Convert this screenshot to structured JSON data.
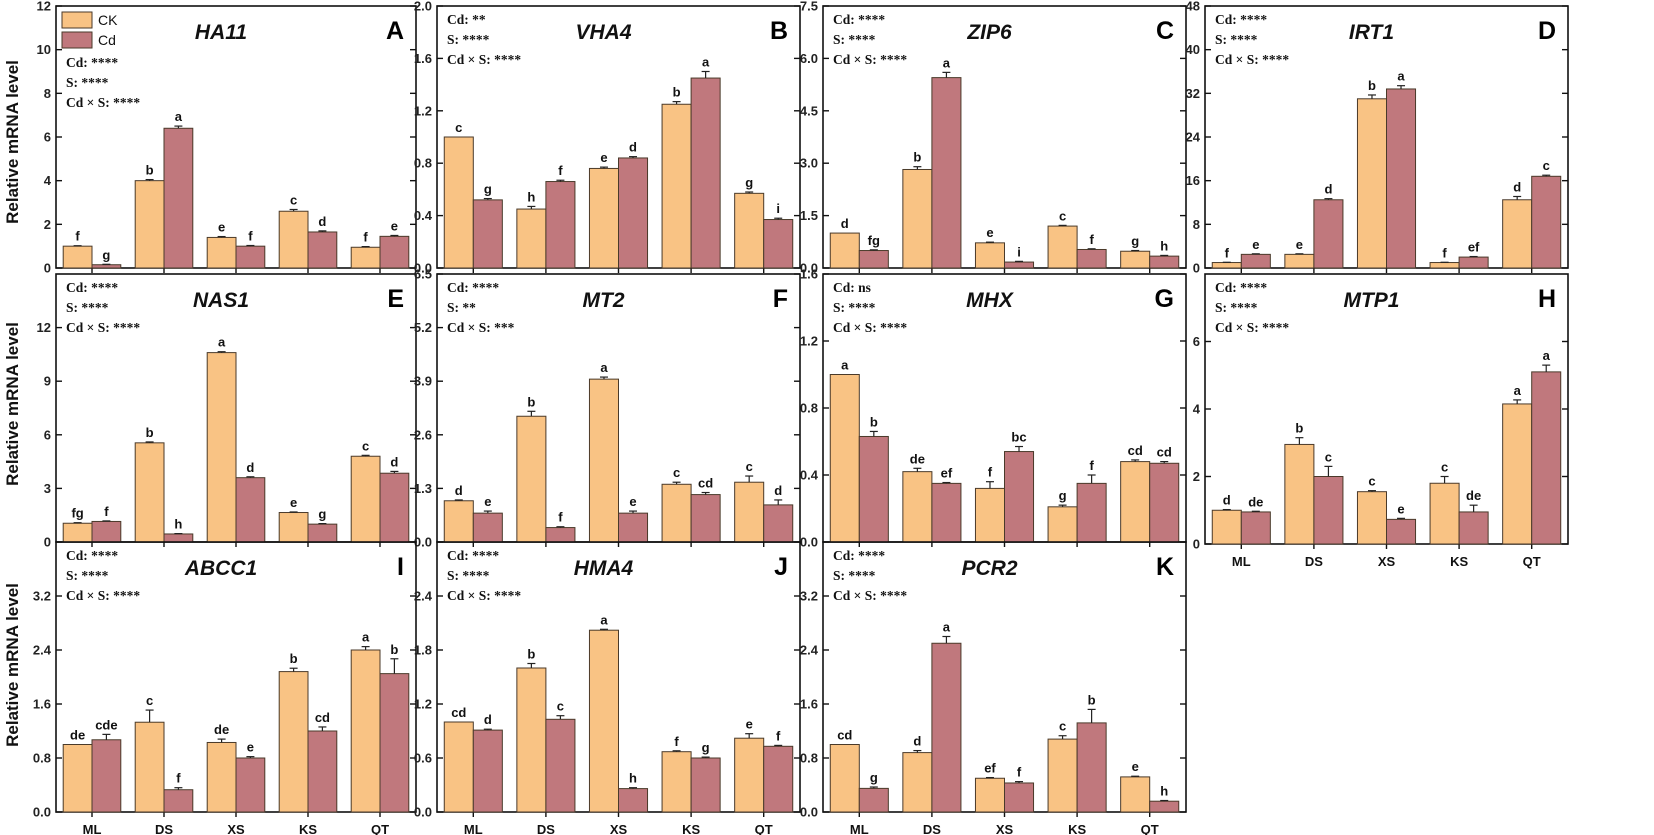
{
  "figure": {
    "y_axis_label": "Relative mRNA level",
    "legend": [
      {
        "label": "CK",
        "color": "#F9C384"
      },
      {
        "label": "Cd",
        "color": "#C0787D"
      }
    ],
    "bar_stroke": "#4a3a2a",
    "axis_color": "#111111"
  },
  "chart_data": [
    {
      "type": "bar",
      "letter": "A",
      "gene": "HA11",
      "categories": [
        "ML",
        "DS",
        "XS",
        "KS",
        "QT"
      ],
      "ylim": [
        0,
        12
      ],
      "yticks": [
        0,
        2,
        4,
        6,
        8,
        10,
        12
      ],
      "yticklabels": [
        "0",
        "2",
        "4",
        "6",
        "8",
        "10",
        "12"
      ],
      "stats": [
        "Cd: ****",
        "S: ****",
        "Cd × S: ****"
      ],
      "series": [
        {
          "name": "CK",
          "values": [
            1.0,
            4.0,
            1.4,
            2.6,
            0.95
          ],
          "errors": [
            0.02,
            0.05,
            0.04,
            0.08,
            0.03
          ],
          "sig": [
            "f",
            "b",
            "e",
            "c",
            "f"
          ]
        },
        {
          "name": "Cd",
          "values": [
            0.15,
            6.4,
            1.0,
            1.65,
            1.45
          ],
          "errors": [
            0.02,
            0.1,
            0.03,
            0.05,
            0.04
          ],
          "sig": [
            "g",
            "a",
            "f",
            "d",
            "e"
          ]
        }
      ]
    },
    {
      "type": "bar",
      "letter": "B",
      "gene": "VHA4",
      "categories": [
        "ML",
        "DS",
        "XS",
        "KS",
        "QT"
      ],
      "ylim": [
        0,
        2.0
      ],
      "yticks": [
        0,
        0.4,
        0.8,
        1.2,
        1.6,
        2.0
      ],
      "yticklabels": [
        "0.0",
        "0.4",
        "0.8",
        "1.2",
        "1.6",
        "2.0"
      ],
      "stats": [
        "Cd: **",
        "S: ****",
        "Cd × S: ****"
      ],
      "series": [
        {
          "name": "CK",
          "values": [
            1.0,
            0.45,
            0.76,
            1.25,
            0.57
          ],
          "errors": [
            0.0,
            0.02,
            0.01,
            0.02,
            0.01
          ],
          "sig": [
            "c",
            "h",
            "e",
            "b",
            "g"
          ]
        },
        {
          "name": "Cd",
          "values": [
            0.52,
            0.66,
            0.84,
            1.45,
            0.37
          ],
          "errors": [
            0.01,
            0.01,
            0.01,
            0.05,
            0.01
          ],
          "sig": [
            "g",
            "f",
            "d",
            "a",
            "i"
          ]
        }
      ]
    },
    {
      "type": "bar",
      "letter": "C",
      "gene": "ZIP6",
      "categories": [
        "ML",
        "DS",
        "XS",
        "KS",
        "QT"
      ],
      "ylim": [
        0,
        7.5
      ],
      "yticks": [
        0,
        1.5,
        3.0,
        4.5,
        6.0,
        7.5
      ],
      "yticklabels": [
        "0.0",
        "1.5",
        "3.0",
        "4.5",
        "6.0",
        "7.5"
      ],
      "stats": [
        "Cd: ****",
        "S: ****",
        "Cd × S: ****"
      ],
      "series": [
        {
          "name": "CK",
          "values": [
            1.0,
            2.82,
            0.72,
            1.2,
            0.48
          ],
          "errors": [
            0.0,
            0.08,
            0.02,
            0.02,
            0.02
          ],
          "sig": [
            "d",
            "b",
            "e",
            "c",
            "g"
          ]
        },
        {
          "name": "Cd",
          "values": [
            0.5,
            5.45,
            0.17,
            0.53,
            0.34
          ],
          "errors": [
            0.02,
            0.15,
            0.02,
            0.02,
            0.02
          ],
          "sig": [
            "fg",
            "a",
            "i",
            "f",
            "h"
          ]
        }
      ]
    },
    {
      "type": "bar",
      "letter": "D",
      "gene": "IRT1",
      "categories": [
        "ML",
        "DS",
        "XS",
        "KS",
        "QT"
      ],
      "ylim": [
        0,
        48
      ],
      "yticks": [
        0,
        8,
        16,
        24,
        32,
        40,
        48
      ],
      "yticklabels": [
        "0",
        "8",
        "16",
        "24",
        "32",
        "40",
        "48"
      ],
      "stats": [
        "Cd: ****",
        "S: ****",
        "Cd × S: ****"
      ],
      "series": [
        {
          "name": "CK",
          "values": [
            1.0,
            2.5,
            31.0,
            1.0,
            12.5
          ],
          "errors": [
            0.05,
            0.1,
            0.7,
            0.05,
            0.6
          ],
          "sig": [
            "f",
            "e",
            "b",
            "f",
            "d"
          ]
        },
        {
          "name": "Cd",
          "values": [
            2.5,
            12.5,
            32.8,
            2.0,
            16.8
          ],
          "errors": [
            0.1,
            0.2,
            0.6,
            0.1,
            0.2
          ],
          "sig": [
            "e",
            "d",
            "a",
            "ef",
            "c"
          ]
        }
      ]
    },
    {
      "type": "bar",
      "letter": "E",
      "gene": "NAS1",
      "categories": [
        "ML",
        "DS",
        "XS",
        "KS",
        "QT"
      ],
      "ylim": [
        0,
        15
      ],
      "yticks": [
        0,
        3,
        6,
        9,
        12
      ],
      "yticklabels": [
        "0",
        "3",
        "6",
        "9",
        "12"
      ],
      "stats": [
        "Cd: ****",
        "S: ****",
        "Cd × S: ****"
      ],
      "series": [
        {
          "name": "CK",
          "values": [
            1.05,
            5.55,
            10.6,
            1.65,
            4.8
          ],
          "errors": [
            0.03,
            0.05,
            0.05,
            0.03,
            0.05
          ],
          "sig": [
            "fg",
            "b",
            "a",
            "e",
            "c"
          ]
        },
        {
          "name": "Cd",
          "values": [
            1.15,
            0.45,
            3.6,
            1.0,
            3.85
          ],
          "errors": [
            0.03,
            0.02,
            0.05,
            0.03,
            0.1
          ],
          "sig": [
            "f",
            "h",
            "d",
            "g",
            "d"
          ]
        }
      ]
    },
    {
      "type": "bar",
      "letter": "F",
      "gene": "MT2",
      "categories": [
        "ML",
        "DS",
        "XS",
        "KS",
        "QT"
      ],
      "ylim": [
        0,
        6.5
      ],
      "yticks": [
        0,
        1.3,
        2.6,
        3.9,
        5.2,
        6.5
      ],
      "yticklabels": [
        "0.0",
        "1.3",
        "2.6",
        "3.9",
        "5.2",
        "6.5"
      ],
      "stats": [
        "Cd: ****",
        "S: **",
        "Cd × S: ***"
      ],
      "series": [
        {
          "name": "CK",
          "values": [
            1.0,
            3.05,
            3.95,
            1.4,
            1.45
          ],
          "errors": [
            0.02,
            0.12,
            0.05,
            0.05,
            0.15
          ],
          "sig": [
            "d",
            "b",
            "a",
            "c",
            "c"
          ]
        },
        {
          "name": "Cd",
          "values": [
            0.7,
            0.35,
            0.7,
            1.15,
            0.9
          ],
          "errors": [
            0.05,
            0.02,
            0.05,
            0.05,
            0.12
          ],
          "sig": [
            "e",
            "f",
            "e",
            "cd",
            "d"
          ]
        }
      ]
    },
    {
      "type": "bar",
      "letter": "G",
      "gene": "MHX",
      "categories": [
        "ML",
        "DS",
        "XS",
        "KS",
        "QT"
      ],
      "ylim": [
        0,
        1.6
      ],
      "yticks": [
        0,
        0.4,
        0.8,
        1.2,
        1.6
      ],
      "yticklabels": [
        "0.0",
        "0.4",
        "0.8",
        "1.2",
        "1.6"
      ],
      "stats": [
        "Cd: ns",
        "S: ****",
        "Cd × S: ****"
      ],
      "series": [
        {
          "name": "CK",
          "values": [
            1.0,
            0.42,
            0.32,
            0.21,
            0.48
          ],
          "errors": [
            0.0,
            0.02,
            0.04,
            0.01,
            0.01
          ],
          "sig": [
            "a",
            "de",
            "f",
            "g",
            "cd"
          ]
        },
        {
          "name": "Cd",
          "values": [
            0.63,
            0.35,
            0.54,
            0.35,
            0.47
          ],
          "errors": [
            0.03,
            0.005,
            0.03,
            0.05,
            0.01
          ],
          "sig": [
            "b",
            "ef",
            "bc",
            "f",
            "cd"
          ]
        }
      ]
    },
    {
      "type": "bar",
      "letter": "H",
      "gene": "MTP1",
      "categories": [
        "ML",
        "DS",
        "XS",
        "KS",
        "QT"
      ],
      "ylim": [
        0,
        8
      ],
      "yticks": [
        0,
        2,
        4,
        6
      ],
      "yticklabels": [
        "0",
        "2",
        "4",
        "6"
      ],
      "stats": [
        "Cd: ****",
        "S: ****",
        "Cd × S: ****"
      ],
      "series": [
        {
          "name": "CK",
          "values": [
            1.0,
            2.95,
            1.55,
            1.8,
            4.15
          ],
          "errors": [
            0.02,
            0.2,
            0.03,
            0.2,
            0.12
          ],
          "sig": [
            "d",
            "b",
            "c",
            "c",
            "a"
          ]
        },
        {
          "name": "Cd",
          "values": [
            0.95,
            2.0,
            0.73,
            0.95,
            5.1
          ],
          "errors": [
            0.02,
            0.3,
            0.03,
            0.2,
            0.2
          ],
          "sig": [
            "de",
            "c",
            "e",
            "de",
            "a"
          ]
        }
      ]
    },
    {
      "type": "bar",
      "letter": "I",
      "gene": "ABCC1",
      "categories": [
        "ML",
        "DS",
        "XS",
        "KS",
        "QT"
      ],
      "ylim": [
        0,
        4.0
      ],
      "yticks": [
        0,
        0.8,
        1.6,
        2.4,
        3.2
      ],
      "yticklabels": [
        "0.0",
        "0.8",
        "1.6",
        "2.4",
        "3.2"
      ],
      "stats": [
        "Cd: ****",
        "S: ****",
        "Cd × S: ****"
      ],
      "series": [
        {
          "name": "CK",
          "values": [
            1.0,
            1.33,
            1.03,
            2.08,
            2.4
          ],
          "errors": [
            0.0,
            0.18,
            0.05,
            0.05,
            0.05
          ],
          "sig": [
            "de",
            "c",
            "de",
            "b",
            "a"
          ]
        },
        {
          "name": "Cd",
          "values": [
            1.07,
            0.33,
            0.8,
            1.2,
            2.05
          ],
          "errors": [
            0.08,
            0.03,
            0.02,
            0.06,
            0.22
          ],
          "sig": [
            "cde",
            "f",
            "e",
            "cd",
            "b"
          ]
        }
      ]
    },
    {
      "type": "bar",
      "letter": "J",
      "gene": "HMA4",
      "categories": [
        "ML",
        "DS",
        "XS",
        "KS",
        "QT"
      ],
      "ylim": [
        0,
        3.0
      ],
      "yticks": [
        0,
        0.6,
        1.2,
        1.8,
        2.4
      ],
      "yticklabels": [
        "0.0",
        "0.6",
        "1.2",
        "1.8",
        "2.4"
      ],
      "stats": [
        "Cd: ****",
        "S: ****",
        "Cd × S: ****"
      ],
      "series": [
        {
          "name": "CK",
          "values": [
            1.0,
            1.6,
            2.02,
            0.67,
            0.82
          ],
          "errors": [
            0.0,
            0.05,
            0.01,
            0.01,
            0.05
          ],
          "sig": [
            "cd",
            "b",
            "a",
            "f",
            "e"
          ]
        },
        {
          "name": "Cd",
          "values": [
            0.91,
            1.03,
            0.26,
            0.6,
            0.73
          ],
          "errors": [
            0.01,
            0.04,
            0.01,
            0.01,
            0.01
          ],
          "sig": [
            "d",
            "c",
            "h",
            "g",
            "f"
          ]
        }
      ]
    },
    {
      "type": "bar",
      "letter": "K",
      "gene": "PCR2",
      "categories": [
        "ML",
        "DS",
        "XS",
        "KS",
        "QT"
      ],
      "ylim": [
        0,
        4.0
      ],
      "yticks": [
        0,
        0.8,
        1.6,
        2.4,
        3.2
      ],
      "yticklabels": [
        "0.0",
        "0.8",
        "1.6",
        "2.4",
        "3.2"
      ],
      "stats": [
        "Cd: ****",
        "S: ****",
        "Cd × S: ****"
      ],
      "series": [
        {
          "name": "CK",
          "values": [
            1.0,
            0.88,
            0.5,
            1.08,
            0.52
          ],
          "errors": [
            0.0,
            0.03,
            0.01,
            0.05,
            0.01
          ],
          "sig": [
            "cd",
            "d",
            "ef",
            "c",
            "e"
          ]
        },
        {
          "name": "Cd",
          "values": [
            0.35,
            2.5,
            0.43,
            1.32,
            0.16
          ],
          "errors": [
            0.02,
            0.1,
            0.02,
            0.2,
            0.01
          ],
          "sig": [
            "g",
            "a",
            "f",
            "b",
            "h"
          ]
        }
      ]
    }
  ]
}
